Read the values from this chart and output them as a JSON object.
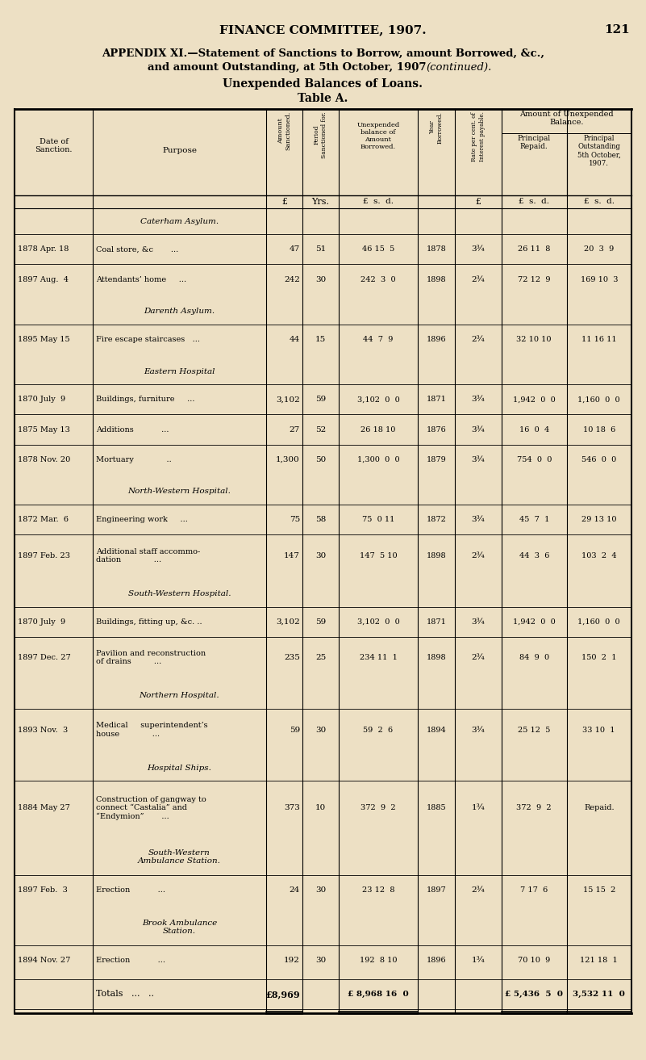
{
  "page_header": "FINANCE COMMITTEE, 1907.",
  "page_number": "121",
  "title_line1": "APPENDIX XI.—Statement of Sanctions to Borrow, amount Borrowed, &c.,",
  "title_line2": "and amount Outstanding, at 5th October, 1907",
  "title_italic": "(continued).",
  "subtitle1": "Unexpended Balances of Loans.",
  "subtitle2": "Table A.",
  "bg_color": "#ede0c4",
  "sections": [
    {
      "name": "Caterham Asylum.",
      "name_style": "smallcaps",
      "rows": [
        {
          "date": "1878 Apr. 18",
          "purpose": "Coal store, &c       ...",
          "amount_sanc": "47",
          "period": "51",
          "unexp_bal": "46 15  5",
          "year_borrow": "1878",
          "rate": "3¾",
          "principal_repaid": "26 11  8",
          "principal_outstanding": "20  3  9"
        },
        {
          "date": "1897 Aug.  4",
          "purpose": "Attendants’ home     ...",
          "amount_sanc": "242",
          "period": "30",
          "unexp_bal": "242  3  0",
          "year_borrow": "1898",
          "rate": "2¾",
          "principal_repaid": "72 12  9",
          "principal_outstanding": "169 10  3"
        }
      ]
    },
    {
      "name": "Darenth Asylum.",
      "name_style": "smallcaps",
      "rows": [
        {
          "date": "1895 May 15",
          "purpose": "Fire escape staircases   ...",
          "amount_sanc": "44",
          "period": "15",
          "unexp_bal": "44  7  9",
          "year_borrow": "1896",
          "rate": "2¾",
          "principal_repaid": "32 10 10",
          "principal_outstanding": "11 16 11"
        }
      ]
    },
    {
      "name": "Eastern Hospital",
      "name_style": "smallcaps",
      "rows": [
        {
          "date": "1870 July  9",
          "purpose": "Buildings, furniture     ...",
          "amount_sanc": "3,102",
          "period": "59",
          "unexp_bal": "3,102  0  0",
          "year_borrow": "1871",
          "rate": "3¾",
          "principal_repaid": "1,942  0  0",
          "principal_outstanding": "1,160  0  0"
        },
        {
          "date": "1875 May 13",
          "purpose": "Additions           ...",
          "amount_sanc": "27",
          "period": "52",
          "unexp_bal": "26 18 10",
          "year_borrow": "1876",
          "rate": "3¾",
          "principal_repaid": "16  0  4",
          "principal_outstanding": "10 18  6"
        },
        {
          "date": "1878 Nov. 20",
          "purpose": "Mortuary             ..",
          "amount_sanc": "1,300",
          "period": "50",
          "unexp_bal": "1,300  0  0",
          "year_borrow": "1879",
          "rate": "3¾",
          "principal_repaid": "754  0  0",
          "principal_outstanding": "546  0  0"
        }
      ]
    },
    {
      "name": "North-Western Hospital.",
      "name_style": "smallcaps",
      "rows": [
        {
          "date": "1872 Mar.  6",
          "purpose": "Engineering work     ...",
          "amount_sanc": "75",
          "period": "58",
          "unexp_bal": "75  0 11",
          "year_borrow": "1872",
          "rate": "3¾",
          "principal_repaid": "45  7  1",
          "principal_outstanding": "29 13 10"
        },
        {
          "date": "1897 Feb. 23",
          "purpose": "Additional staff accommo-\ndation             ...",
          "amount_sanc": "147",
          "period": "30",
          "unexp_bal": "147  5 10",
          "year_borrow": "1898",
          "rate": "2¾",
          "principal_repaid": "44  3  6",
          "principal_outstanding": "103  2  4"
        }
      ]
    },
    {
      "name": "South-Western Hospital.",
      "name_style": "smallcaps",
      "rows": [
        {
          "date": "1870 July  9",
          "purpose": "Buildings, fitting up, &c. ..",
          "amount_sanc": "3,102",
          "period": "59",
          "unexp_bal": "3,102  0  0",
          "year_borrow": "1871",
          "rate": "3¾",
          "principal_repaid": "1,942  0  0",
          "principal_outstanding": "1,160  0  0"
        },
        {
          "date": "1897 Dec. 27",
          "purpose": "Pavilion and reconstruction\nof drains         ...",
          "amount_sanc": "235",
          "period": "25",
          "unexp_bal": "234 11  1",
          "year_borrow": "1898",
          "rate": "2¾",
          "principal_repaid": "84  9  0",
          "principal_outstanding": "150  2  1"
        }
      ]
    },
    {
      "name": "Northern Hospital.",
      "name_style": "smallcaps",
      "rows": [
        {
          "date": "1893 Nov.  3",
          "purpose": "Medical     superintendent’s\nhouse             ...",
          "amount_sanc": "59",
          "period": "30",
          "unexp_bal": "59  2  6",
          "year_borrow": "1894",
          "rate": "3¾",
          "principal_repaid": "25 12  5",
          "principal_outstanding": "33 10  1"
        }
      ]
    },
    {
      "name": "Hospital Ships.",
      "name_style": "smallcaps",
      "rows": [
        {
          "date": "1884 May 27",
          "purpose": "Construction of gangway to\nconnect “Castalia” and\n“Endymion”       ...",
          "amount_sanc": "373",
          "period": "10",
          "unexp_bal": "372  9  2",
          "year_borrow": "1885",
          "rate": "1¾",
          "principal_repaid": "372  9  2",
          "principal_outstanding": "Repaid."
        }
      ]
    },
    {
      "name": "South-Western\nAmbulance Station.",
      "name_style": "smallcaps",
      "rows": [
        {
          "date": "1897 Feb.  3",
          "purpose": "Erection           ...",
          "amount_sanc": "24",
          "period": "30",
          "unexp_bal": "23 12  8",
          "year_borrow": "1897",
          "rate": "2¾",
          "principal_repaid": "7 17  6",
          "principal_outstanding": "15 15  2"
        }
      ]
    },
    {
      "name": "Brook Ambulance\nStation.",
      "name_style": "smallcaps",
      "rows": [
        {
          "date": "1894 Nov. 27",
          "purpose": "Erection           ...",
          "amount_sanc": "192",
          "period": "30",
          "unexp_bal": "192  8 10",
          "year_borrow": "1896",
          "rate": "1¾",
          "principal_repaid": "70 10  9",
          "principal_outstanding": "121 18  1"
        }
      ]
    }
  ],
  "totals_row": {
    "amount_sanc": "£8,969",
    "unexp_bal": "£ 8,968 16  0",
    "principal_repaid": "£ 5,436  5  0",
    "principal_outstanding": "3,532 11  0"
  }
}
